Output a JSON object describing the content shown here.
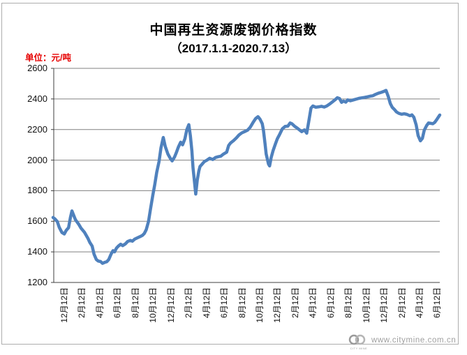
{
  "header": {
    "title": "中国再生资源废钢价格指数",
    "subtitle": "（2017.1.1-2020.7.13）",
    "unit_label": "单位：元/吨"
  },
  "watermark": {
    "url_text": "www.citymine.com.cn",
    "logo_name": "citymine-rings-logo",
    "logo_caption": "CITY MINE"
  },
  "colors": {
    "line": "#4F81BD",
    "gridline": "#808080",
    "axis": "#3f3f3f",
    "unit_label": "#e60000",
    "watermark": "#9f9f9f",
    "frame_border": "#adadad"
  },
  "chart_data": {
    "type": "line",
    "title": "中国再生资源废钢价格指数",
    "subtitle": "（2017.1.1-2020.7.13）",
    "ylabel": "元/吨",
    "xlabel": "",
    "ylim": [
      1200,
      2600
    ],
    "ytick_interval": 200,
    "yticks": [
      1200,
      1400,
      1600,
      1800,
      2000,
      2200,
      2400,
      2600
    ],
    "grid": true,
    "legend": "none",
    "xticklabels": [
      "12月12日",
      "2月12日",
      "4月12日",
      "6月12日",
      "8月12日",
      "10月12日",
      "12月12日",
      "2月12日",
      "4月12日",
      "6月12日",
      "8月12日",
      "10月12日",
      "12月12日",
      "2月12日",
      "4月12日",
      "6月12日",
      "8月12日",
      "10月12日",
      "12月12日",
      "2月12日",
      "4月12日",
      "6月12日"
    ],
    "series": [
      {
        "name": "废钢价格指数",
        "points": [
          [
            0.0,
            1625
          ],
          [
            0.005,
            1615
          ],
          [
            0.011,
            1598
          ],
          [
            0.016,
            1560
          ],
          [
            0.023,
            1527
          ],
          [
            0.029,
            1517
          ],
          [
            0.034,
            1540
          ],
          [
            0.04,
            1558
          ],
          [
            0.045,
            1625
          ],
          [
            0.049,
            1668
          ],
          [
            0.052,
            1648
          ],
          [
            0.058,
            1610
          ],
          [
            0.067,
            1578
          ],
          [
            0.072,
            1556
          ],
          [
            0.081,
            1529
          ],
          [
            0.09,
            1489
          ],
          [
            0.095,
            1462
          ],
          [
            0.101,
            1438
          ],
          [
            0.106,
            1385
          ],
          [
            0.112,
            1350
          ],
          [
            0.117,
            1340
          ],
          [
            0.123,
            1337
          ],
          [
            0.128,
            1325
          ],
          [
            0.133,
            1331
          ],
          [
            0.139,
            1336
          ],
          [
            0.144,
            1350
          ],
          [
            0.15,
            1385
          ],
          [
            0.155,
            1408
          ],
          [
            0.159,
            1400
          ],
          [
            0.164,
            1425
          ],
          [
            0.169,
            1438
          ],
          [
            0.175,
            1450
          ],
          [
            0.18,
            1441
          ],
          [
            0.187,
            1452
          ],
          [
            0.193,
            1468
          ],
          [
            0.2,
            1475
          ],
          [
            0.205,
            1470
          ],
          [
            0.211,
            1483
          ],
          [
            0.218,
            1492
          ],
          [
            0.225,
            1500
          ],
          [
            0.231,
            1508
          ],
          [
            0.236,
            1520
          ],
          [
            0.241,
            1545
          ],
          [
            0.247,
            1600
          ],
          [
            0.252,
            1680
          ],
          [
            0.258,
            1770
          ],
          [
            0.263,
            1840
          ],
          [
            0.268,
            1920
          ],
          [
            0.274,
            1990
          ],
          [
            0.279,
            2080
          ],
          [
            0.285,
            2148
          ],
          [
            0.29,
            2090
          ],
          [
            0.297,
            2040
          ],
          [
            0.303,
            2012
          ],
          [
            0.308,
            1995
          ],
          [
            0.314,
            2020
          ],
          [
            0.319,
            2050
          ],
          [
            0.324,
            2085
          ],
          [
            0.33,
            2117
          ],
          [
            0.335,
            2100
          ],
          [
            0.341,
            2140
          ],
          [
            0.346,
            2200
          ],
          [
            0.351,
            2232
          ],
          [
            0.355,
            2160
          ],
          [
            0.359,
            2060
          ],
          [
            0.362,
            1950
          ],
          [
            0.366,
            1850
          ],
          [
            0.369,
            1778
          ],
          [
            0.373,
            1870
          ],
          [
            0.377,
            1930
          ],
          [
            0.38,
            1958
          ],
          [
            0.386,
            1975
          ],
          [
            0.391,
            1990
          ],
          [
            0.398,
            2000
          ],
          [
            0.405,
            2012
          ],
          [
            0.413,
            2004
          ],
          [
            0.42,
            2017
          ],
          [
            0.427,
            2022
          ],
          [
            0.434,
            2026
          ],
          [
            0.441,
            2040
          ],
          [
            0.449,
            2052
          ],
          [
            0.454,
            2095
          ],
          [
            0.459,
            2112
          ],
          [
            0.467,
            2128
          ],
          [
            0.474,
            2145
          ],
          [
            0.481,
            2165
          ],
          [
            0.488,
            2178
          ],
          [
            0.495,
            2186
          ],
          [
            0.503,
            2196
          ],
          [
            0.51,
            2215
          ],
          [
            0.517,
            2245
          ],
          [
            0.524,
            2272
          ],
          [
            0.53,
            2284
          ],
          [
            0.535,
            2268
          ],
          [
            0.541,
            2238
          ],
          [
            0.544,
            2195
          ],
          [
            0.548,
            2110
          ],
          [
            0.551,
            2040
          ],
          [
            0.557,
            1975
          ],
          [
            0.56,
            1962
          ],
          [
            0.564,
            2017
          ],
          [
            0.569,
            2062
          ],
          [
            0.575,
            2105
          ],
          [
            0.58,
            2140
          ],
          [
            0.586,
            2168
          ],
          [
            0.593,
            2205
          ],
          [
            0.6,
            2220
          ],
          [
            0.607,
            2222
          ],
          [
            0.613,
            2243
          ],
          [
            0.618,
            2237
          ],
          [
            0.625,
            2220
          ],
          [
            0.631,
            2210
          ],
          [
            0.638,
            2196
          ],
          [
            0.643,
            2186
          ],
          [
            0.65,
            2198
          ],
          [
            0.656,
            2176
          ],
          [
            0.661,
            2250
          ],
          [
            0.667,
            2340
          ],
          [
            0.672,
            2354
          ],
          [
            0.679,
            2346
          ],
          [
            0.686,
            2348
          ],
          [
            0.694,
            2352
          ],
          [
            0.701,
            2347
          ],
          [
            0.708,
            2354
          ],
          [
            0.715,
            2366
          ],
          [
            0.722,
            2380
          ],
          [
            0.73,
            2396
          ],
          [
            0.735,
            2408
          ],
          [
            0.741,
            2402
          ],
          [
            0.746,
            2378
          ],
          [
            0.751,
            2386
          ],
          [
            0.757,
            2379
          ],
          [
            0.762,
            2394
          ],
          [
            0.769,
            2388
          ],
          [
            0.777,
            2394
          ],
          [
            0.784,
            2399
          ],
          [
            0.791,
            2404
          ],
          [
            0.798,
            2407
          ],
          [
            0.805,
            2410
          ],
          [
            0.813,
            2414
          ],
          [
            0.82,
            2418
          ],
          [
            0.827,
            2421
          ],
          [
            0.834,
            2430
          ],
          [
            0.841,
            2437
          ],
          [
            0.849,
            2443
          ],
          [
            0.856,
            2450
          ],
          [
            0.861,
            2456
          ],
          [
            0.867,
            2415
          ],
          [
            0.872,
            2370
          ],
          [
            0.877,
            2345
          ],
          [
            0.883,
            2330
          ],
          [
            0.888,
            2315
          ],
          [
            0.894,
            2306
          ],
          [
            0.901,
            2300
          ],
          [
            0.908,
            2303
          ],
          [
            0.915,
            2299
          ],
          [
            0.923,
            2290
          ],
          [
            0.928,
            2296
          ],
          [
            0.933,
            2280
          ],
          [
            0.939,
            2230
          ],
          [
            0.944,
            2160
          ],
          [
            0.95,
            2126
          ],
          [
            0.955,
            2142
          ],
          [
            0.96,
            2196
          ],
          [
            0.966,
            2226
          ],
          [
            0.971,
            2243
          ],
          [
            0.977,
            2240
          ],
          [
            0.982,
            2238
          ],
          [
            0.987,
            2247
          ],
          [
            0.993,
            2268
          ],
          [
            1.0,
            2295
          ]
        ]
      }
    ]
  }
}
